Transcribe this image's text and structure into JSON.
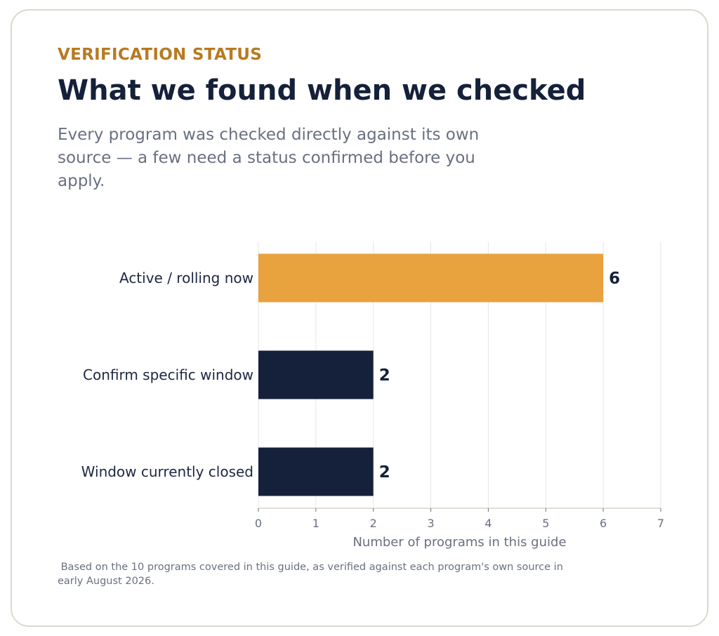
{
  "header": {
    "eyebrow": "VERIFICATION STATUS",
    "title": "What we found when we checked",
    "subtitle": "Every program was checked directly against its own source — a few need a status confirmed before you apply."
  },
  "footnote": " Based on the 10 programs covered in this guide, as verified against each program's own source in early August 2026.",
  "colors": {
    "highlight": "#e8a23e",
    "dark": "#15213a",
    "grid": "#e6e6e6",
    "axis": "#d8d3c6",
    "muted": "#687080"
  },
  "chart_data": {
    "type": "bar",
    "orientation": "horizontal",
    "categories": [
      "Active / rolling now",
      "Confirm specific window",
      "Window currently closed"
    ],
    "values": [
      6,
      2,
      2
    ],
    "highlight_index": 0,
    "xlabel": "Number of programs in this guide",
    "xlim": [
      0,
      7
    ],
    "xticks": [
      "0",
      "1",
      "2",
      "3",
      "4",
      "5",
      "6",
      "7"
    ],
    "value_labels": [
      "6",
      "2",
      "2"
    ],
    "grid": true
  }
}
